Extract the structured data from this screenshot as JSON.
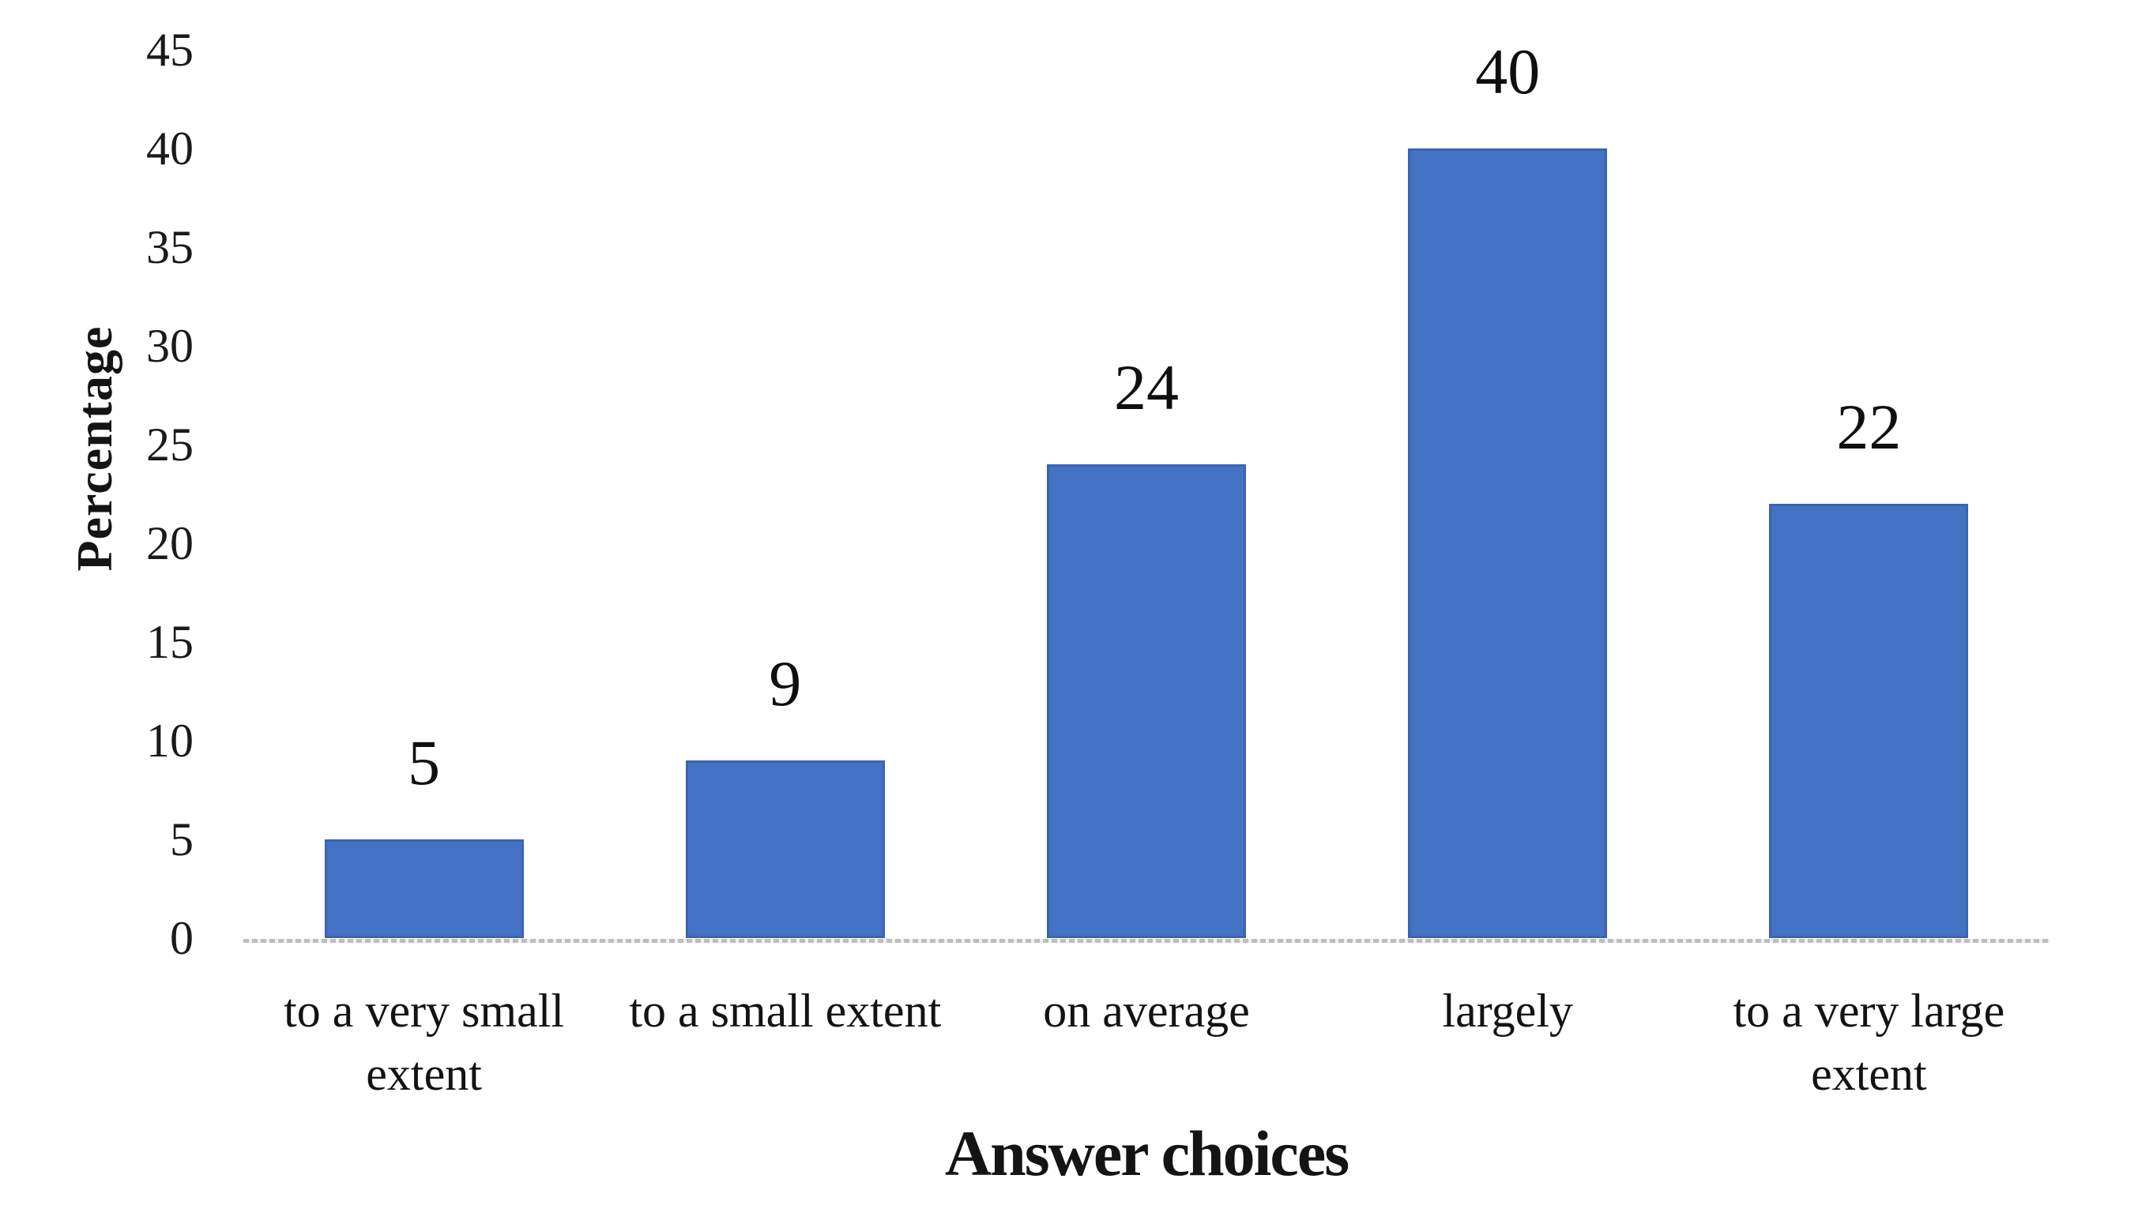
{
  "chart_data": {
    "type": "bar",
    "title": "",
    "categories": [
      "to a very small extent",
      "to a small extent",
      "on average",
      "largely",
      "to a very large extent"
    ],
    "values": [
      5,
      9,
      24,
      40,
      22
    ],
    "data_labels": [
      "5",
      "9",
      "24",
      "40",
      "22"
    ],
    "xlabel": "Answer choices",
    "ylabel": "Percentage",
    "ylim": [
      0,
      45
    ],
    "yticks": [
      0,
      5,
      10,
      15,
      20,
      25,
      30,
      35,
      40,
      45
    ],
    "grid": false,
    "legend_position": "none",
    "bar_color": "#4472C4",
    "bar_border_color": "#3C64AE",
    "axis_line_color": "#BDBDBD",
    "text_color": "#141414"
  }
}
